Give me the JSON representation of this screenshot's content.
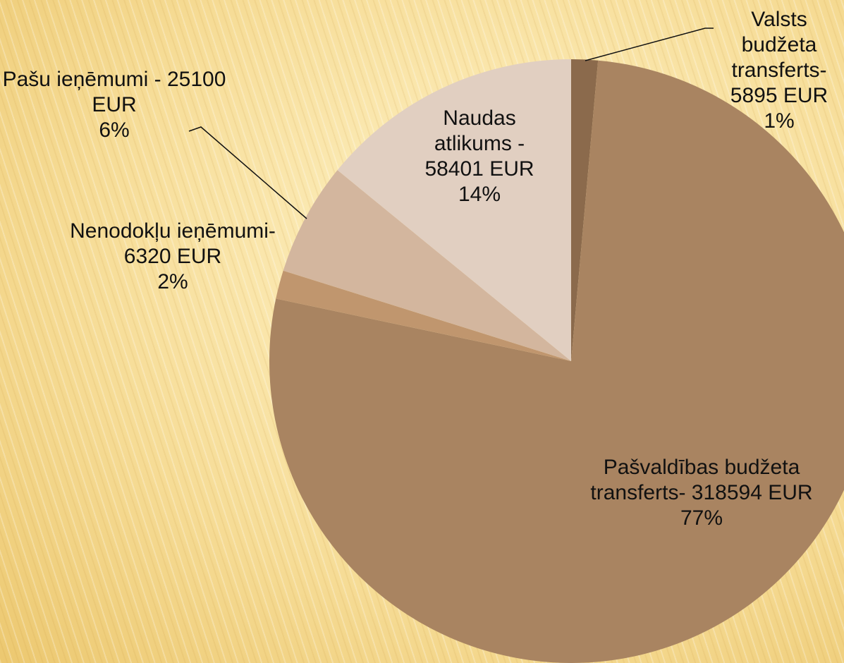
{
  "chart_data": {
    "type": "pie",
    "categories": [
      "Valsts budžeta transferts-",
      "Pašvaldības budžeta transferts-",
      "Nenodokļu ieņēmumi-",
      "Pašu ieņēmumi -",
      "Naudas atlikums -"
    ],
    "values": [
      5895,
      318594,
      6320,
      25100,
      58401
    ],
    "value_labels": [
      "5895 EUR",
      "318594 EUR",
      "6320 EUR",
      "25100 EUR",
      "58401 EUR"
    ],
    "percent_labels": [
      "1%",
      "77%",
      "2%",
      "6%",
      "14%"
    ],
    "colors": [
      "#8b6a4c",
      "#a98461",
      "#c0966e",
      "#d3b69e",
      "#e1cfc1"
    ]
  }
}
